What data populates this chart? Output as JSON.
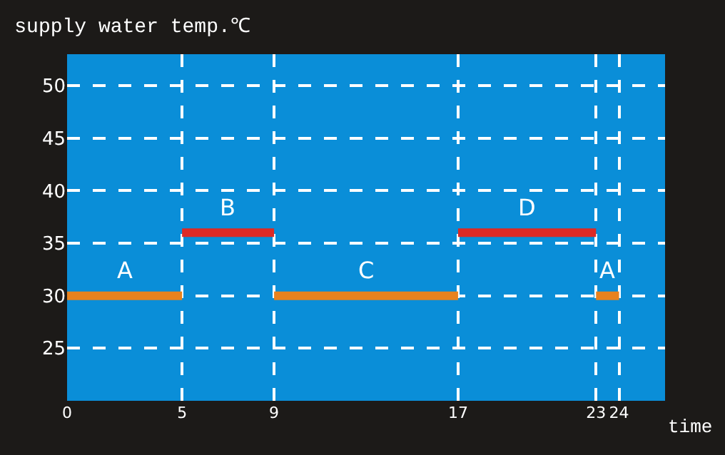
{
  "chart_data": {
    "type": "line",
    "title": "supply water temp.℃",
    "xlabel": "time",
    "series": [
      {
        "x": [
          0,
          5
        ],
        "values": [
          30,
          30
        ],
        "color": "#e8821e"
      },
      {
        "x": [
          5,
          9
        ],
        "values": [
          36,
          36
        ],
        "color": "#dc2a26"
      },
      {
        "x": [
          9,
          17
        ],
        "values": [
          30,
          30
        ],
        "color": "#e8821e"
      },
      {
        "x": [
          17,
          23
        ],
        "values": [
          36,
          36
        ],
        "color": "#dc2a26"
      },
      {
        "x": [
          23,
          24
        ],
        "values": [
          30,
          30
        ],
        "color": "#e8821e"
      }
    ],
    "annotations": [
      {
        "text": "A",
        "x": 2.5,
        "y": 30
      },
      {
        "text": "B",
        "x": 7,
        "y": 36
      },
      {
        "text": "C",
        "x": 13,
        "y": 30
      },
      {
        "text": "D",
        "x": 20,
        "y": 36
      },
      {
        "text": "A",
        "x": 23.5,
        "y": 30
      }
    ],
    "xlim": [
      0,
      26
    ],
    "xticks": [
      0,
      5,
      9,
      17,
      23,
      24
    ],
    "ylim": [
      20,
      53
    ],
    "yticks": [
      25,
      30,
      35,
      40,
      45,
      50
    ],
    "grid": true,
    "marker": "none",
    "line_style": "solid"
  }
}
